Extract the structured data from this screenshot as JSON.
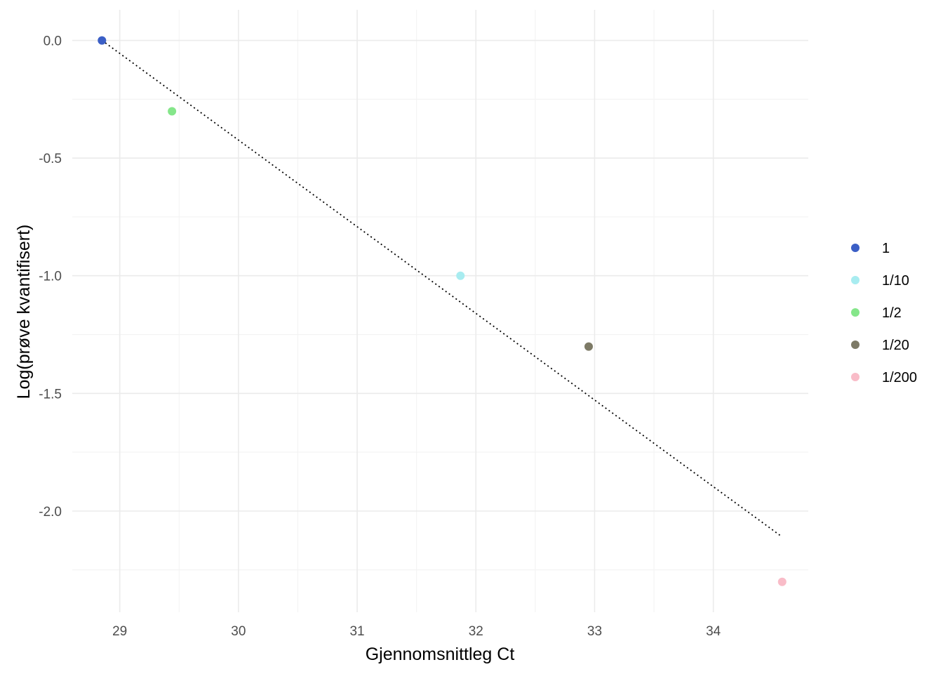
{
  "chart_data": {
    "type": "scatter",
    "title": "",
    "xlabel": "Gjennomsnittleg Ct",
    "ylabel": "Log(prøve kvantifisert)",
    "xlim": [
      28.6,
      34.8
    ],
    "ylim": [
      -2.43,
      0.13
    ],
    "x_ticks": [
      29,
      30,
      31,
      32,
      33,
      34
    ],
    "x_tick_labels": [
      "29",
      "30",
      "31",
      "32",
      "33",
      "34"
    ],
    "y_ticks": [
      0,
      -0.5,
      -1,
      -1.5,
      -2
    ],
    "y_tick_labels": [
      "0.0",
      "-0.5",
      "-1.0",
      "-1.5",
      "-2.0"
    ],
    "grid": true,
    "legend_position": "right",
    "series": [
      {
        "name": "1",
        "color": "#3b5fc6",
        "points": [
          {
            "x": 28.85,
            "y": 0.0
          }
        ]
      },
      {
        "name": "1/10",
        "color": "#a8ecf0",
        "points": [
          {
            "x": 31.87,
            "y": -1.0
          }
        ]
      },
      {
        "name": "1/2",
        "color": "#85e68a",
        "points": [
          {
            "x": 29.44,
            "y": -0.301
          }
        ]
      },
      {
        "name": "1/20",
        "color": "#7d7a66",
        "points": [
          {
            "x": 32.95,
            "y": -1.301
          }
        ]
      },
      {
        "name": "1/200",
        "color": "#f9bcc8",
        "points": [
          {
            "x": 34.58,
            "y": -2.301
          }
        ]
      }
    ],
    "fit_line": {
      "style": "dotted",
      "color": "#000000",
      "x": [
        28.85,
        34.58
      ],
      "y": [
        0.0,
        -2.11
      ]
    }
  }
}
